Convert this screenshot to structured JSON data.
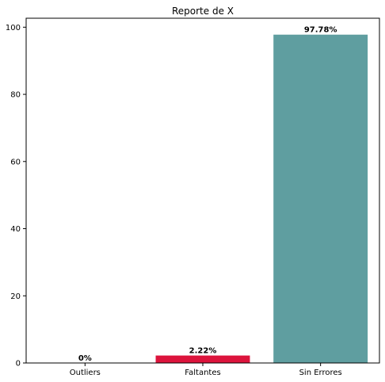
{
  "chart_data": {
    "type": "bar",
    "title": "Reporte de X",
    "xlabel": "",
    "ylabel": "",
    "categories": [
      "Outliers",
      "Faltantes",
      "Sin Errores"
    ],
    "values": [
      0,
      2.22,
      97.78
    ],
    "data_labels": [
      "0%",
      "2.22%",
      "97.78%"
    ],
    "colors": [
      "#1f77b4",
      "#dc143c",
      "#5f9ea0"
    ],
    "ylim": [
      0,
      102.67
    ],
    "yticks": [
      0,
      20,
      40,
      60,
      80,
      100
    ],
    "grid": false,
    "legend": "none"
  }
}
